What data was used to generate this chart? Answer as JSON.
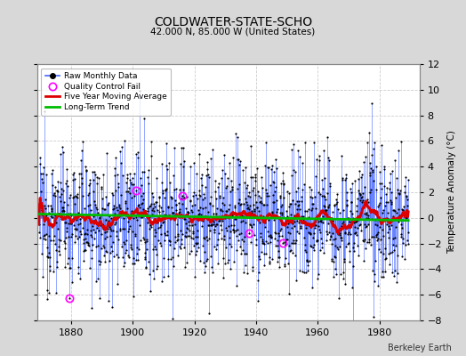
{
  "title": "COLDWATER-STATE-SCHO",
  "subtitle": "42.000 N, 85.000 W (United States)",
  "credit": "Berkeley Earth",
  "ylabel": "Temperature Anomaly (°C)",
  "xlim": [
    1869,
    1993
  ],
  "ylim": [
    -8,
    12
  ],
  "yticks": [
    -8,
    -6,
    -4,
    -2,
    0,
    2,
    4,
    6,
    8,
    10,
    12
  ],
  "xticks": [
    1880,
    1900,
    1920,
    1940,
    1960,
    1980
  ],
  "bg_color": "#d8d8d8",
  "plot_bg_color": "#ffffff",
  "raw_line_color": "#4466ff",
  "raw_dot_color": "#000000",
  "moving_avg_color": "#dd0000",
  "trend_color": "#00bb00",
  "qc_fail_color": "#ff00ff",
  "seed": 12345,
  "start_year": 1869.5,
  "n_months": 1440
}
